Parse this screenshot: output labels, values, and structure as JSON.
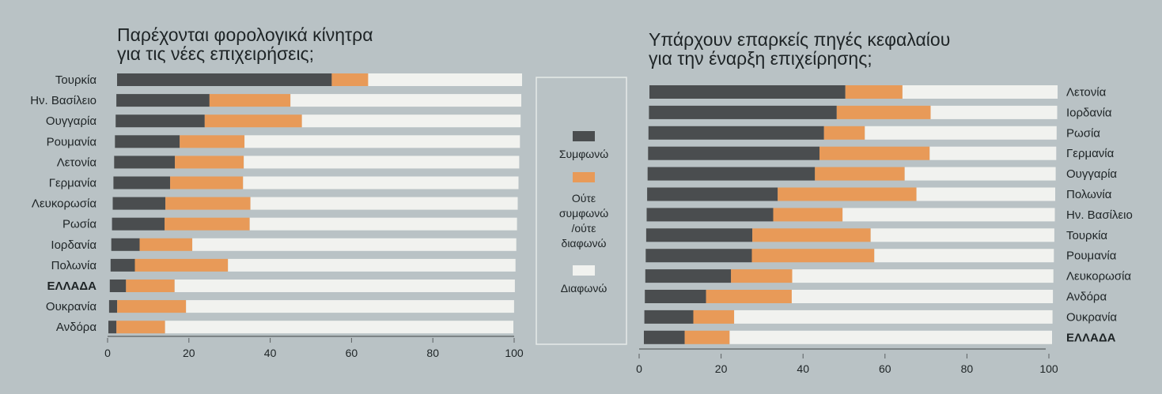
{
  "legend": {
    "items": [
      {
        "label": "Συμφωνώ",
        "color": "#4a4d4f"
      },
      {
        "label": "Ούτε συμφωνώ /ούτε διαφωνώ",
        "lines": [
          "Ούτε",
          "συμφωνώ",
          "/ούτε",
          "διαφωνώ"
        ],
        "color": "#e89a58"
      },
      {
        "label": "Διαφωνώ",
        "color": "#f1f2ef"
      }
    ]
  },
  "chart_data": [
    {
      "type": "bar",
      "stacked": true,
      "orientation": "horizontal",
      "title_lines": [
        "Παρέχονται φορολογικά κίνητρα",
        "για τις νέες επιχειρήσεις;"
      ],
      "categories": [
        "Τουρκία",
        "Ην. Βασίλειο",
        "Ουγγαρία",
        "Ρουμανία",
        "Λετονία",
        "Γερμανία",
        "Λευκορωσία",
        "Ρωσία",
        "Ιορδανία",
        "Πολωνία",
        "ΕΛΛΑΔΑ",
        "Ουκρανία",
        "Ανδόρα"
      ],
      "highlight": "ΕΛΛΑΔΑ",
      "series": [
        {
          "name": "Συμφωνώ",
          "values": [
            53,
            23,
            22,
            16,
            15,
            14,
            13,
            13,
            7,
            6,
            4,
            2,
            2
          ]
        },
        {
          "name": "Ούτε συμφωνώ /ούτε διαφωνώ",
          "values": [
            9,
            20,
            24,
            16,
            17,
            18,
            21,
            21,
            13,
            23,
            12,
            17,
            12
          ]
        },
        {
          "name": "Διαφωνώ",
          "values": [
            38,
            57,
            54,
            68,
            68,
            68,
            66,
            66,
            80,
            71,
            84,
            81,
            86
          ]
        }
      ],
      "xlim": [
        0,
        100
      ],
      "xticks": [
        0,
        20,
        40,
        60,
        80,
        100
      ],
      "labels_side": "left"
    },
    {
      "type": "bar",
      "stacked": true,
      "orientation": "horizontal",
      "title_lines": [
        "Υπάρχουν επαρκείς πηγές κεφαλαίου",
        "για την έναρξη επιχείρησης;"
      ],
      "categories": [
        "Λετονία",
        "Ιορδανία",
        "Ρωσία",
        "Γερμανία",
        "Ουγγαρία",
        "Πολωνία",
        "Ην. Βασίλειο",
        "Τουρκία",
        "Ρουμανία",
        "Λευκορωσία",
        "Ανδόρα",
        "Ουκρανία",
        "ΕΛΛΑΔΑ"
      ],
      "highlight": "ΕΛΛΑΔΑ",
      "series": [
        {
          "name": "Συμφωνώ",
          "values": [
            48,
            46,
            43,
            42,
            41,
            32,
            31,
            26,
            26,
            21,
            15,
            12,
            10
          ]
        },
        {
          "name": "Ούτε συμφωνώ /ούτε διαφωνώ",
          "values": [
            14,
            23,
            10,
            27,
            22,
            34,
            17,
            29,
            30,
            15,
            21,
            10,
            11
          ]
        },
        {
          "name": "Διαφωνώ",
          "values": [
            38,
            31,
            47,
            31,
            37,
            34,
            52,
            45,
            44,
            64,
            64,
            78,
            79
          ]
        }
      ],
      "xlim": [
        0,
        100
      ],
      "xticks": [
        0,
        20,
        40,
        60,
        80,
        100
      ],
      "labels_side": "right"
    }
  ]
}
